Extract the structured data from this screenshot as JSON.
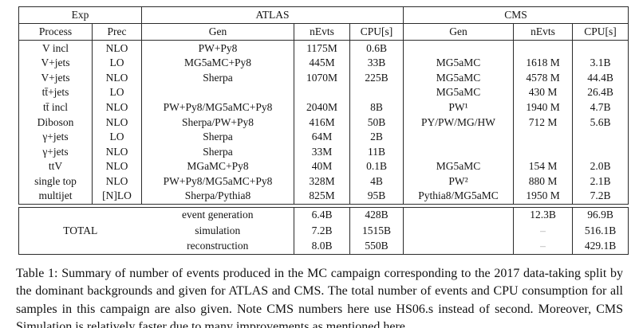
{
  "table": {
    "header_groups": [
      {
        "label": "Exp",
        "span": 2
      },
      {
        "label": "ATLAS",
        "span": 3
      },
      {
        "label": "CMS",
        "span": 3
      }
    ],
    "columns": [
      "Process",
      "Prec",
      "Gen",
      "nEvts",
      "CPU[s]",
      "Gen",
      "nEvts",
      "CPU[s]"
    ],
    "rows": [
      [
        "V incl",
        "NLO",
        "PW+Py8",
        "1175M",
        "0.6B",
        "",
        "",
        ""
      ],
      [
        "V+jets",
        "LO",
        "MG5aMC+Py8",
        "445M",
        "33B",
        "MG5aMC",
        "1618 M",
        "3.1B"
      ],
      [
        "V+jets",
        "NLO",
        "Sherpa",
        "1070M",
        "225B",
        "MG5aMC",
        "4578 M",
        "44.4B"
      ],
      [
        "tt̄+jets",
        "LO",
        "",
        "",
        "",
        "MG5aMC",
        "430 M",
        "26.4B"
      ],
      [
        "tt̄ incl",
        "NLO",
        "PW+Py8/MG5aMC+Py8",
        "2040M",
        "8B",
        "PW¹",
        "1940 M",
        "4.7B"
      ],
      [
        "Diboson",
        "NLO",
        "Sherpa/PW+Py8",
        "416M",
        "50B",
        "PY/PW/MG/HW",
        "712 M",
        "5.6B"
      ],
      [
        "γ+jets",
        "LO",
        "Sherpa",
        "64M",
        "2B",
        "",
        "",
        ""
      ],
      [
        "γ+jets",
        "NLO",
        "Sherpa",
        "33M",
        "11B",
        "",
        "",
        ""
      ],
      [
        "ttV",
        "NLO",
        "MGaMC+Py8",
        "40M",
        "0.1B",
        "MG5aMC",
        "154 M",
        "2.0B"
      ],
      [
        "single top",
        "NLO",
        "PW+Py8/MG5aMC+Py8",
        "328M",
        "4B",
        "PW²",
        "880 M",
        "2.1B"
      ],
      [
        "multijet",
        "[N]LO",
        "Sherpa/Pythia8",
        "825M",
        "95B",
        "Pythia8/MG5aMC",
        "1950 M",
        "7.2B"
      ]
    ],
    "total": {
      "label": "TOTAL",
      "rows": [
        [
          "event generation",
          "6.4B",
          "428B",
          "",
          "12.3B",
          "96.9B"
        ],
        [
          "simulation",
          "7.2B",
          "1515B",
          "",
          "–",
          "516.1B"
        ],
        [
          "reconstruction",
          "8.0B",
          "550B",
          "",
          "–",
          "429.1B"
        ]
      ]
    }
  },
  "caption": {
    "label": "Table 1:",
    "text": "Summary of number of events produced in the MC campaign corresponding to the 2017 data-taking split by the dominant backgrounds and given for ATLAS and CMS. The total number of events and CPU consumption for all samples in this campaign are also given. Note CMS numbers here use HS06.s instead of second. Moreover, CMS Simulation is relatively faster due to many improvements as mentioned",
    "link_text": "here",
    "period": "."
  },
  "colors": {
    "background": "#ffffff",
    "text": "#141414",
    "border": "#2b2b2b",
    "muted_dash": "#a9a9a9"
  }
}
